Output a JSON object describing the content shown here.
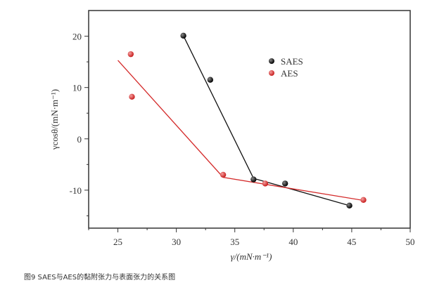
{
  "caption": "图9 SAES与AES的黏附张力与表面张力的关系图",
  "chart_data": {
    "type": "scatter",
    "title": "",
    "xlabel": "γ/(mN·m⁻¹)",
    "ylabel": "γcosθ/(mN·m⁻¹)",
    "xlim": [
      22.5,
      50
    ],
    "ylim": [
      -17.4,
      25
    ],
    "xticks": [
      25,
      30,
      35,
      40,
      45,
      50
    ],
    "yticks": [
      -10,
      0,
      10,
      20
    ],
    "grid": false,
    "legend_position": "upper-right-of-center",
    "series": [
      {
        "name": "SAES",
        "color": "#111111",
        "points": [
          [
            30.6,
            20.1
          ],
          [
            32.9,
            11.5
          ],
          [
            36.6,
            -7.9
          ],
          [
            39.3,
            -8.7
          ],
          [
            44.8,
            -13.0
          ]
        ],
        "fit_line": [
          [
            30.6,
            20.1
          ],
          [
            36.6,
            -7.7
          ],
          [
            44.8,
            -13.0
          ]
        ]
      },
      {
        "name": "AES",
        "color": "#d42a2a",
        "points": [
          [
            26.1,
            16.5
          ],
          [
            26.2,
            8.2
          ],
          [
            34.0,
            -7.0
          ],
          [
            37.6,
            -8.7
          ],
          [
            46.0,
            -11.9
          ]
        ],
        "fit_line": [
          [
            25.0,
            15.3
          ],
          [
            34.0,
            -7.5
          ],
          [
            46.0,
            -12.0
          ]
        ]
      }
    ]
  }
}
